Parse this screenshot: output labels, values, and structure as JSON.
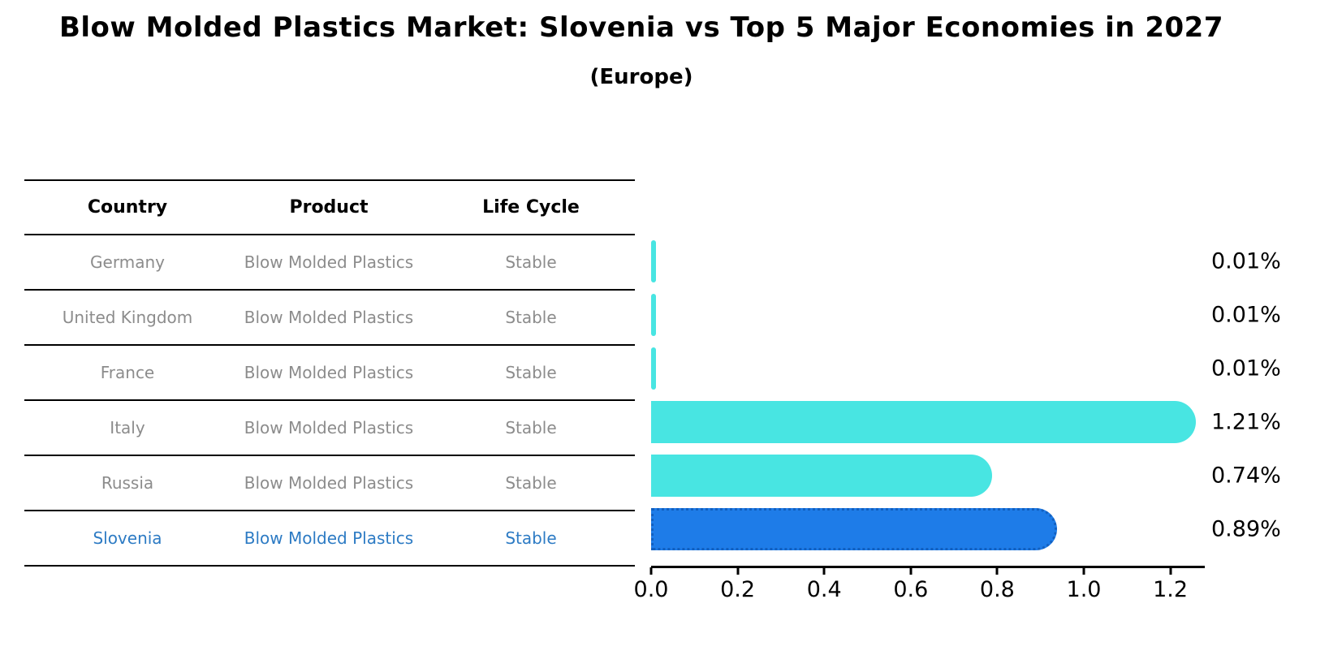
{
  "title": "Blow Molded Plastics Market: Slovenia vs Top 5 Major Economies in 2027",
  "subtitle": "(Europe)",
  "table": {
    "headers": [
      "Country",
      "Product",
      "Life Cycle"
    ],
    "rows": [
      {
        "country": "Germany",
        "product": "Blow Molded Plastics",
        "life_cycle": "Stable",
        "highlighted": false
      },
      {
        "country": "United Kingdom",
        "product": "Blow Molded Plastics",
        "life_cycle": "Stable",
        "highlighted": false
      },
      {
        "country": "France",
        "product": "Blow Molded Plastics",
        "life_cycle": "Stable",
        "highlighted": false
      },
      {
        "country": "Italy",
        "product": "Blow Molded Plastics",
        "life_cycle": "Stable",
        "highlighted": false
      },
      {
        "country": "Russia",
        "product": "Blow Molded Plastics",
        "life_cycle": "Stable",
        "highlighted": false
      },
      {
        "country": "Slovenia",
        "product": "Blow Molded Plastics",
        "life_cycle": "Stable",
        "highlighted": true
      }
    ]
  },
  "chart_data": {
    "type": "bar",
    "orientation": "horizontal",
    "title": "Blow Molded Plastics Market: Slovenia vs Top 5 Major Economies in 2027 (Europe)",
    "categories": [
      "Germany",
      "United Kingdom",
      "France",
      "Italy",
      "Russia",
      "Slovenia"
    ],
    "values": [
      0.01,
      0.01,
      0.01,
      1.21,
      0.74,
      0.89
    ],
    "value_labels": [
      "0.01%",
      "0.01%",
      "0.01%",
      "1.21%",
      "0.74%",
      "0.89%"
    ],
    "unit": "%",
    "x_ticks": [
      "0.0",
      "0.2",
      "0.4",
      "0.6",
      "0.8",
      "1.0",
      "1.2"
    ],
    "xlim": [
      0,
      1.28
    ],
    "grid": false,
    "legend": false,
    "highlight_category": "Slovenia",
    "colors": {
      "bar_default": "#48E5E2",
      "bar_highlight": "#1E7CE8",
      "bar_highlight_border": "#1260C0",
      "row_text": "#8c8c8c",
      "highlight_text": "#2d7bc4",
      "text": "#000000"
    }
  }
}
